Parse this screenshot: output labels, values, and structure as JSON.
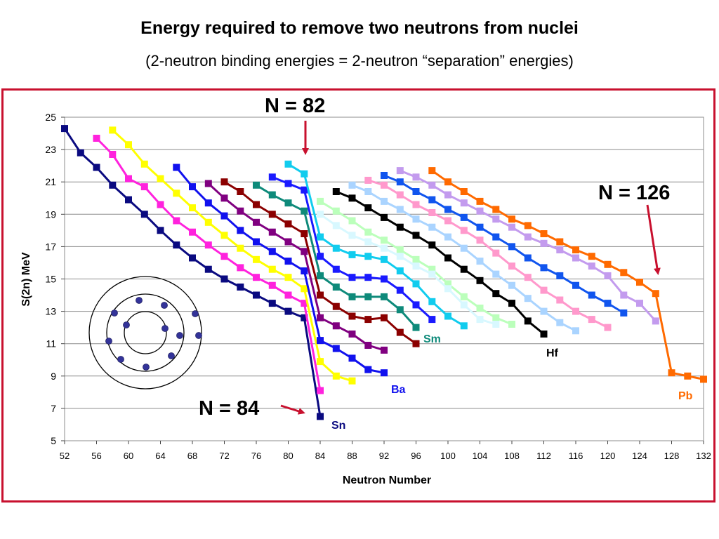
{
  "title": "Energy required to remove two neutrons from nuclei",
  "subtitle": "(2-neutron binding energies = 2-neutron “separation” energies)",
  "chart_data": {
    "type": "line",
    "xlabel": "Neutron Number",
    "ylabel": "S(2n) MeV",
    "xlim": [
      52,
      132
    ],
    "ylim": [
      5,
      25
    ],
    "xticks": [
      "52",
      "56",
      "60",
      "64",
      "68",
      "72",
      "76",
      "80",
      "84",
      "88",
      "92",
      "96",
      "100",
      "104",
      "108",
      "112",
      "116",
      "120",
      "124",
      "128",
      "132"
    ],
    "yticks": [
      "5",
      "7",
      "9",
      "11",
      "13",
      "15",
      "17",
      "19",
      "21",
      "23",
      "25"
    ],
    "grid": "horizontal",
    "legend": "none",
    "annotations": [
      {
        "text": "N = 82"
      },
      {
        "text": "N = 126"
      },
      {
        "text": "N = 84"
      }
    ],
    "series": [
      {
        "name": "Sn",
        "color": "#0a0a80",
        "x": [
          52,
          54,
          56,
          58,
          60,
          62,
          64,
          66,
          68,
          70,
          72,
          74,
          76,
          78,
          80,
          82,
          84
        ],
        "y": [
          24.3,
          22.8,
          21.9,
          20.8,
          19.9,
          19.0,
          18.0,
          17.1,
          16.3,
          15.6,
          15.0,
          14.5,
          14.0,
          13.5,
          13.0,
          12.6,
          6.5
        ]
      },
      {
        "name": "",
        "color": "#ff22dd",
        "x": [
          56,
          58,
          60,
          62,
          64,
          66,
          68,
          70,
          72,
          74,
          76,
          78,
          80,
          82,
          84
        ],
        "y": [
          23.7,
          22.7,
          21.2,
          20.7,
          19.6,
          18.6,
          17.9,
          17.1,
          16.4,
          15.7,
          15.1,
          14.6,
          14.0,
          13.5,
          8.1
        ]
      },
      {
        "name": "",
        "color": "#ffff00",
        "x": [
          58,
          60,
          62,
          64,
          66,
          68,
          70,
          72,
          74,
          76,
          78,
          80,
          82,
          84,
          86,
          88
        ],
        "y": [
          24.2,
          23.3,
          22.1,
          21.2,
          20.3,
          19.4,
          18.5,
          17.7,
          16.9,
          16.2,
          15.6,
          15.1,
          14.4,
          9.9,
          9.0,
          8.7
        ]
      },
      {
        "name": "Ba",
        "color": "#1111ee",
        "x": [
          66,
          68,
          70,
          72,
          74,
          76,
          78,
          80,
          82,
          84,
          86,
          88,
          90,
          92
        ],
        "y": [
          21.9,
          20.7,
          19.7,
          18.9,
          18.0,
          17.3,
          16.7,
          16.1,
          15.5,
          11.2,
          10.7,
          10.1,
          9.4,
          9.2
        ]
      },
      {
        "name": "",
        "color": "#800080",
        "x": [
          70,
          72,
          74,
          76,
          78,
          80,
          82,
          84,
          86,
          88,
          90,
          92
        ],
        "y": [
          20.9,
          20.0,
          19.2,
          18.5,
          17.9,
          17.3,
          16.7,
          12.6,
          12.1,
          11.6,
          10.9,
          10.6
        ]
      },
      {
        "name": "",
        "color": "#8b0000",
        "x": [
          72,
          74,
          76,
          78,
          80,
          82,
          84,
          86,
          88,
          90,
          92,
          94,
          96
        ],
        "y": [
          21.0,
          20.4,
          19.6,
          19.0,
          18.4,
          17.8,
          14.0,
          13.3,
          12.7,
          12.5,
          12.6,
          11.7,
          11.0
        ]
      },
      {
        "name": "Sm",
        "color": "#0e8a7a",
        "x": [
          76,
          78,
          80,
          82,
          84,
          86,
          88,
          90,
          92,
          94,
          96
        ],
        "y": [
          20.8,
          20.2,
          19.7,
          19.2,
          15.2,
          14.5,
          13.9,
          13.9,
          13.9,
          13.1,
          12.0
        ]
      },
      {
        "name": "",
        "color": "#1a1aff",
        "x": [
          78,
          80,
          82,
          84,
          86,
          88,
          90,
          92,
          94,
          96,
          98
        ],
        "y": [
          21.3,
          20.9,
          20.5,
          16.4,
          15.6,
          15.1,
          15.1,
          15.0,
          14.3,
          13.4,
          12.5
        ]
      },
      {
        "name": "",
        "color": "#11ccee",
        "x": [
          80,
          82,
          84,
          86,
          88,
          90,
          92,
          94,
          96,
          98,
          100,
          102
        ],
        "y": [
          22.1,
          21.5,
          17.6,
          16.9,
          16.5,
          16.4,
          16.2,
          15.5,
          14.7,
          13.6,
          12.7,
          12.1
        ]
      },
      {
        "name": "",
        "color": "#bbffbb",
        "x": [
          84,
          86,
          88,
          90,
          92,
          94,
          96,
          98,
          100,
          102,
          104,
          106,
          108
        ],
        "y": [
          19.8,
          19.2,
          18.6,
          17.9,
          17.4,
          16.8,
          16.2,
          15.6,
          14.7,
          13.9,
          13.2,
          12.6,
          12.2
        ]
      },
      {
        "name": "",
        "color": "#d8f8ff",
        "x": [
          84,
          86,
          88,
          90,
          92,
          94,
          96,
          98,
          100,
          102,
          104,
          106
        ],
        "y": [
          19.0,
          18.3,
          17.7,
          17.3,
          16.9,
          16.4,
          15.8,
          15.3,
          14.4,
          13.4,
          12.5,
          12.2
        ]
      },
      {
        "name": "Hf",
        "color": "#000000",
        "x": [
          86,
          88,
          90,
          92,
          94,
          96,
          98,
          100,
          102,
          104,
          106,
          108,
          110,
          112
        ],
        "y": [
          20.4,
          20.0,
          19.4,
          18.8,
          18.2,
          17.7,
          17.1,
          16.3,
          15.6,
          14.9,
          14.1,
          13.5,
          12.4,
          11.6
        ]
      },
      {
        "name": "",
        "color": "#aad4ff",
        "x": [
          88,
          90,
          92,
          94,
          96,
          98,
          100,
          102,
          104,
          106,
          108,
          110,
          112,
          114,
          116
        ],
        "y": [
          20.8,
          20.4,
          19.8,
          19.3,
          18.7,
          18.2,
          17.6,
          16.9,
          16.1,
          15.3,
          14.6,
          13.8,
          13.0,
          12.3,
          11.8
        ]
      },
      {
        "name": "",
        "color": "#ff99cc",
        "x": [
          90,
          92,
          94,
          96,
          98,
          100,
          102,
          104,
          106,
          108,
          110,
          112,
          114,
          116,
          118,
          120
        ],
        "y": [
          21.1,
          20.8,
          20.2,
          19.6,
          19.1,
          18.6,
          18.0,
          17.4,
          16.6,
          15.8,
          15.1,
          14.3,
          13.7,
          13.0,
          12.5,
          12.0
        ]
      },
      {
        "name": "",
        "color": "#1155ee",
        "x": [
          92,
          94,
          96,
          98,
          100,
          102,
          104,
          106,
          108,
          110,
          112,
          114,
          116,
          118,
          120,
          122
        ],
        "y": [
          21.4,
          21.0,
          20.4,
          19.9,
          19.3,
          18.8,
          18.2,
          17.6,
          17.0,
          16.3,
          15.7,
          15.2,
          14.6,
          14.0,
          13.5,
          12.9
        ]
      },
      {
        "name": "",
        "color": "#c39bee",
        "x": [
          94,
          96,
          98,
          100,
          102,
          104,
          106,
          108,
          110,
          112,
          114,
          116,
          118,
          120,
          122,
          124,
          126
        ],
        "y": [
          21.7,
          21.3,
          20.8,
          20.2,
          19.7,
          19.2,
          18.7,
          18.2,
          17.6,
          17.2,
          16.8,
          16.3,
          15.8,
          15.2,
          14.0,
          13.5,
          12.4
        ]
      },
      {
        "name": "Pb",
        "color": "#ff6a00",
        "x": [
          98,
          100,
          102,
          104,
          106,
          108,
          110,
          112,
          114,
          116,
          118,
          120,
          122,
          124,
          126,
          128,
          130,
          132
        ],
        "y": [
          21.7,
          21.0,
          20.4,
          19.8,
          19.3,
          18.7,
          18.3,
          17.8,
          17.3,
          16.8,
          16.4,
          15.9,
          15.4,
          14.8,
          14.1,
          9.2,
          9.0,
          8.8
        ]
      }
    ]
  }
}
